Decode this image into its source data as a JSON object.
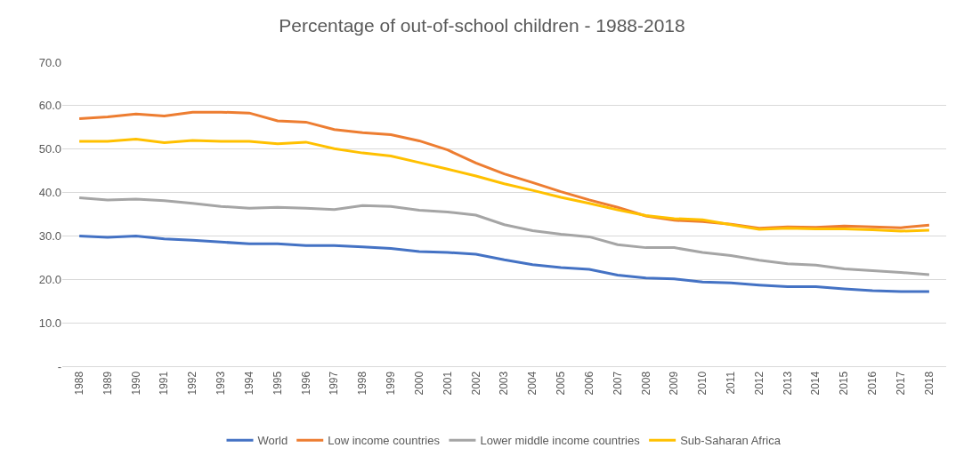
{
  "chart_data": {
    "type": "line",
    "title": "Percentage of out-of-school children - 1988-2018",
    "categories": [
      "1988",
      "1989",
      "1990",
      "1991",
      "1992",
      "1993",
      "1994",
      "1995",
      "1996",
      "1997",
      "1998",
      "1999",
      "2000",
      "2001",
      "2002",
      "2003",
      "2004",
      "2005",
      "2006",
      "2007",
      "2008",
      "2009",
      "2010",
      "2011",
      "2012",
      "2013",
      "2014",
      "2015",
      "2016",
      "2017",
      "2018"
    ],
    "series": [
      {
        "name": "World",
        "color": "#4472c4",
        "values": [
          30.0,
          29.7,
          30.0,
          29.3,
          29.0,
          28.6,
          28.2,
          28.2,
          27.8,
          27.8,
          27.5,
          27.1,
          26.4,
          26.2,
          25.8,
          24.5,
          23.4,
          22.7,
          22.3,
          21.0,
          20.3,
          20.1,
          19.4,
          19.2,
          18.7,
          18.3,
          18.3,
          17.8,
          17.4,
          17.2,
          17.2
        ]
      },
      {
        "name": "Low income countries",
        "color": "#ed7d31",
        "values": [
          57.0,
          57.4,
          58.1,
          57.6,
          58.5,
          58.5,
          58.3,
          56.5,
          56.2,
          54.5,
          53.8,
          53.3,
          51.9,
          49.8,
          46.8,
          44.3,
          42.3,
          40.2,
          38.3,
          36.6,
          34.6,
          33.6,
          33.3,
          32.7,
          31.8,
          32.1,
          32.0,
          32.3,
          32.1,
          31.9,
          32.5
        ]
      },
      {
        "name": "Lower middle income countries",
        "color": "#a5a5a5",
        "values": [
          38.8,
          38.3,
          38.5,
          38.1,
          37.5,
          36.8,
          36.4,
          36.6,
          36.4,
          36.1,
          37.0,
          36.8,
          35.9,
          35.5,
          34.8,
          32.6,
          31.2,
          30.4,
          29.8,
          28.0,
          27.3,
          27.3,
          26.2,
          25.5,
          24.4,
          23.6,
          23.3,
          22.4,
          22.0,
          21.6,
          21.1
        ]
      },
      {
        "name": "Sub-Saharan Africa",
        "color": "#ffc000",
        "values": [
          51.8,
          51.8,
          52.3,
          51.5,
          52.0,
          51.8,
          51.8,
          51.2,
          51.6,
          50.1,
          49.1,
          48.4,
          46.9,
          45.4,
          43.8,
          42.0,
          40.5,
          38.9,
          37.5,
          36.0,
          34.7,
          34.0,
          33.7,
          32.6,
          31.5,
          31.8,
          31.6,
          31.6,
          31.4,
          31.1,
          31.3
        ]
      }
    ],
    "ylim": [
      0,
      70
    ],
    "yticks": [
      {
        "value": 0,
        "label": "-"
      },
      {
        "value": 10,
        "label": "10.0"
      },
      {
        "value": 20,
        "label": "20.0"
      },
      {
        "value": 30,
        "label": "30.0"
      },
      {
        "value": 40,
        "label": "40.0"
      },
      {
        "value": 50,
        "label": "50.0"
      },
      {
        "value": 60,
        "label": "60.0"
      },
      {
        "value": 70,
        "label": "70.0"
      }
    ],
    "grid": "y",
    "legend": "bottom",
    "marker": "none",
    "line_style": "solid"
  }
}
